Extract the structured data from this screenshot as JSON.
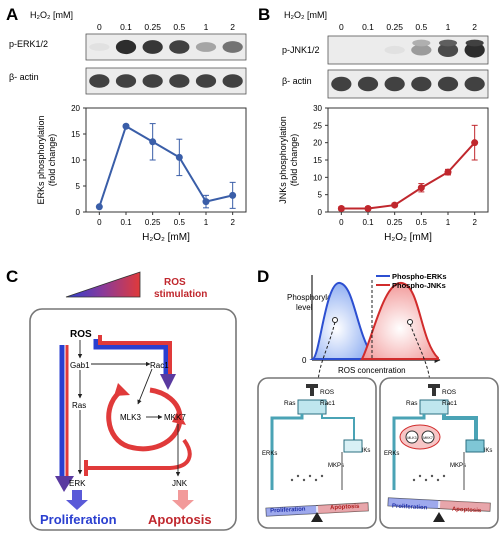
{
  "panels": {
    "A": {
      "letter": "A",
      "conc_header": "H₂O₂ [mM]",
      "lanes": [
        "0",
        "0.1",
        "0.25",
        "0.5",
        "1",
        "2"
      ],
      "blots": [
        "p-ERK1/2",
        "β- actin"
      ],
      "blot_intensity": [
        [
          0.05,
          0.95,
          0.9,
          0.85,
          0.35,
          0.6
        ],
        [
          0.85,
          0.85,
          0.85,
          0.85,
          0.85,
          0.85
        ]
      ],
      "chart_data": {
        "type": "line",
        "categories": [
          "0",
          "0.1",
          "0.25",
          "0.5",
          "1",
          "2"
        ],
        "series": [
          {
            "values": [
              1,
              16.5,
              13.5,
              10.5,
              2,
              3.2
            ],
            "err": [
              0,
              0.3,
              3.5,
              3.5,
              1.2,
              2.5
            ],
            "color": "#3a5ea8"
          }
        ],
        "ylabel": "ERKs phosphorylation (fold change)",
        "xlabel": "H₂O₂ [mM]",
        "ylim": [
          0,
          20
        ],
        "yticks": [
          "0",
          "5",
          "10",
          "15",
          "20"
        ]
      }
    },
    "B": {
      "letter": "B",
      "conc_header": "H₂O₂ [mM]",
      "lanes": [
        "0",
        "0.1",
        "0.25",
        "0.5",
        "1",
        "2"
      ],
      "blots": [
        "p-JNK1/2",
        "β- actin"
      ],
      "blot_intensity": [
        [
          0.0,
          0.0,
          0.05,
          0.4,
          0.8,
          0.95
        ],
        [
          0.85,
          0.85,
          0.85,
          0.85,
          0.85,
          0.85
        ]
      ],
      "chart_data": {
        "type": "line",
        "categories": [
          "0",
          "0.1",
          "0.25",
          "0.5",
          "1",
          "2"
        ],
        "series": [
          {
            "values": [
              1,
              1,
              2,
              7,
              11.5,
              20
            ],
            "err": [
              0.5,
              0.5,
              0.5,
              1.2,
              0.8,
              5
            ],
            "color": "#c0272d"
          }
        ],
        "ylabel": "JNKs phosphorylation (fold change)",
        "xlabel": "H₂O₂ [mM]",
        "ylim": [
          0,
          30
        ],
        "yticks": [
          "0",
          "5",
          "10",
          "15",
          "20",
          "25",
          "30"
        ]
      }
    },
    "C": {
      "letter": "C",
      "stimulus": "ROS stimulation",
      "nodes": {
        "ros": "ROS",
        "gab1": "Gab1",
        "rac1": "Rac1",
        "ras": "Ras",
        "mlk3": "MLK3",
        "mkk7": "MKK7",
        "erk": "ERK",
        "jnk": "JNK"
      },
      "outcomes": {
        "proliferation": "Proliferation",
        "apoptosis": "Apoptosis"
      }
    },
    "D": {
      "letter": "D",
      "legend": [
        "Phospho-ERKs",
        "Phospho-JNKs"
      ],
      "ylabel": "Phosphorylation level",
      "xlabel": "ROS concentration",
      "zero": "0",
      "colors": {
        "erk": "#2c4fd1",
        "jnk": "#d12c2c"
      },
      "model_labels": {
        "ros": "ROS",
        "ras": "Ras",
        "rac1": "Rac1",
        "erks": "ERKs",
        "jnks": "JNKs",
        "mkps": "MKPs",
        "mlk3": "MLK3",
        "mkk7": "MKK7",
        "proliferation": "Proliferation",
        "apoptosis": "Apoptosis"
      }
    }
  }
}
